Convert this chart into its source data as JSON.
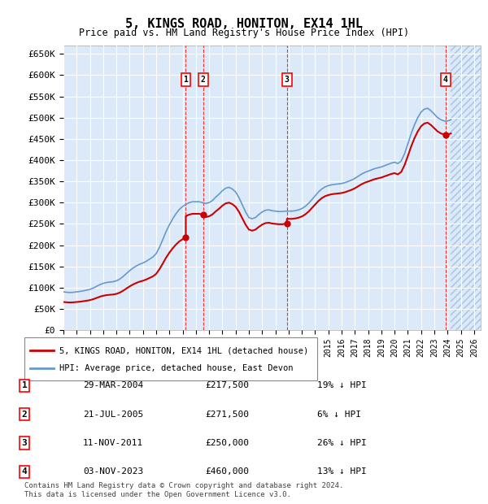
{
  "title": "5, KINGS ROAD, HONITON, EX14 1HL",
  "subtitle": "Price paid vs. HM Land Registry's House Price Index (HPI)",
  "ylabel": "",
  "ylim": [
    0,
    670000
  ],
  "yticks": [
    0,
    50000,
    100000,
    150000,
    200000,
    250000,
    300000,
    350000,
    400000,
    450000,
    500000,
    550000,
    600000,
    650000
  ],
  "ytick_labels": [
    "£0",
    "£50K",
    "£100K",
    "£150K",
    "£200K",
    "£250K",
    "£300K",
    "£350K",
    "£400K",
    "£450K",
    "£500K",
    "£550K",
    "£600K",
    "£650K"
  ],
  "xlim_start": 1995.0,
  "xlim_end": 2026.5,
  "background_color": "#dce9f8",
  "hatch_color": "#b0c8e8",
  "grid_color": "#ffffff",
  "hpi_color": "#6699cc",
  "price_color": "#cc0000",
  "transactions": [
    {
      "label": "1",
      "date_num": 2004.24,
      "price": 217500,
      "rel": "19% ↓ HPI",
      "date_str": "29-MAR-2004"
    },
    {
      "label": "2",
      "date_num": 2005.55,
      "price": 271500,
      "rel": "6% ↓ HPI",
      "date_str": "21-JUL-2005"
    },
    {
      "label": "3",
      "date_num": 2011.87,
      "price": 250000,
      "rel": "26% ↓ HPI",
      "date_str": "11-NOV-2011"
    },
    {
      "label": "4",
      "date_num": 2023.84,
      "price": 460000,
      "rel": "13% ↓ HPI",
      "date_str": "03-NOV-2023"
    }
  ],
  "legend_label1": "5, KINGS ROAD, HONITON, EX14 1HL (detached house)",
  "legend_label2": "HPI: Average price, detached house, East Devon",
  "footnote": "Contains HM Land Registry data © Crown copyright and database right 2024.\nThis data is licensed under the Open Government Licence v3.0.",
  "hpi_data": {
    "years": [
      1995.0,
      1995.25,
      1995.5,
      1995.75,
      1996.0,
      1996.25,
      1996.5,
      1996.75,
      1997.0,
      1997.25,
      1997.5,
      1997.75,
      1998.0,
      1998.25,
      1998.5,
      1998.75,
      1999.0,
      1999.25,
      1999.5,
      1999.75,
      2000.0,
      2000.25,
      2000.5,
      2000.75,
      2001.0,
      2001.25,
      2001.5,
      2001.75,
      2002.0,
      2002.25,
      2002.5,
      2002.75,
      2003.0,
      2003.25,
      2003.5,
      2003.75,
      2004.0,
      2004.25,
      2004.5,
      2004.75,
      2005.0,
      2005.25,
      2005.5,
      2005.75,
      2006.0,
      2006.25,
      2006.5,
      2006.75,
      2007.0,
      2007.25,
      2007.5,
      2007.75,
      2008.0,
      2008.25,
      2008.5,
      2008.75,
      2009.0,
      2009.25,
      2009.5,
      2009.75,
      2010.0,
      2010.25,
      2010.5,
      2010.75,
      2011.0,
      2011.25,
      2011.5,
      2011.75,
      2012.0,
      2012.25,
      2012.5,
      2012.75,
      2013.0,
      2013.25,
      2013.5,
      2013.75,
      2014.0,
      2014.25,
      2014.5,
      2014.75,
      2015.0,
      2015.25,
      2015.5,
      2015.75,
      2016.0,
      2016.25,
      2016.5,
      2016.75,
      2017.0,
      2017.25,
      2017.5,
      2017.75,
      2018.0,
      2018.25,
      2018.5,
      2018.75,
      2019.0,
      2019.25,
      2019.5,
      2019.75,
      2020.0,
      2020.25,
      2020.5,
      2020.75,
      2021.0,
      2021.25,
      2021.5,
      2021.75,
      2022.0,
      2022.25,
      2022.5,
      2022.75,
      2023.0,
      2023.25,
      2023.5,
      2023.75,
      2024.0,
      2024.25
    ],
    "values": [
      90000,
      89000,
      88500,
      89000,
      90000,
      91000,
      92500,
      94000,
      96000,
      99000,
      103000,
      107000,
      110000,
      112000,
      113000,
      114000,
      116000,
      120000,
      126000,
      133000,
      140000,
      146000,
      151000,
      155000,
      158000,
      162000,
      167000,
      172000,
      180000,
      195000,
      213000,
      232000,
      248000,
      262000,
      274000,
      284000,
      291000,
      296000,
      300000,
      302000,
      302000,
      302000,
      300000,
      298000,
      300000,
      305000,
      313000,
      320000,
      328000,
      334000,
      336000,
      332000,
      325000,
      312000,
      295000,
      278000,
      265000,
      262000,
      265000,
      272000,
      278000,
      282000,
      283000,
      281000,
      280000,
      279000,
      279000,
      280000,
      280000,
      280000,
      281000,
      283000,
      286000,
      291000,
      298000,
      307000,
      316000,
      325000,
      332000,
      337000,
      340000,
      342000,
      343000,
      344000,
      345000,
      347000,
      350000,
      353000,
      357000,
      362000,
      367000,
      371000,
      374000,
      377000,
      380000,
      382000,
      384000,
      387000,
      390000,
      393000,
      395000,
      392000,
      398000,
      415000,
      438000,
      462000,
      483000,
      500000,
      513000,
      520000,
      522000,
      516000,
      508000,
      500000,
      495000,
      492000,
      492000,
      495000
    ]
  },
  "price_line_data": {
    "years": [
      2004.24,
      2004.24,
      2005.55,
      2005.55,
      2011.87,
      2011.87,
      2023.84,
      2023.84
    ],
    "values": [
      217500,
      217500,
      271500,
      271500,
      250000,
      250000,
      460000,
      460000
    ]
  }
}
